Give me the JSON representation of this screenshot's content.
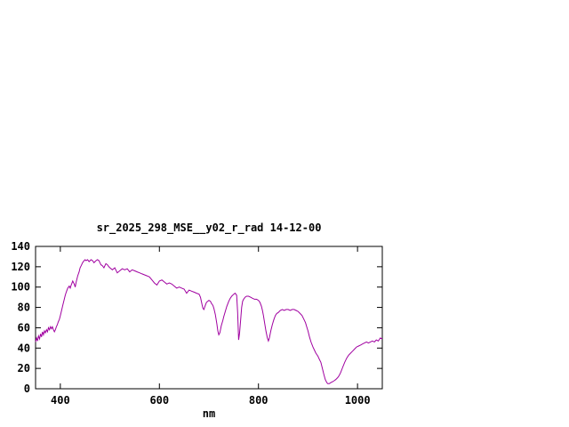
{
  "chart_data": {
    "type": "line",
    "title": "sr_2025_298_MSE__y02_r_rad 14-12-00",
    "xlabel": "nm",
    "ylabel": "",
    "xlim": [
      350,
      1050
    ],
    "ylim": [
      0,
      140
    ],
    "xticks": [
      400,
      600,
      800,
      1000
    ],
    "yticks": [
      0,
      20,
      40,
      60,
      80,
      100,
      120,
      140
    ],
    "grid": false,
    "legend": "none",
    "axis_color": "#000000",
    "background": "#ffffff",
    "series": [
      {
        "color": "#a000a0",
        "points": [
          [
            350,
            46
          ],
          [
            352,
            50
          ],
          [
            354,
            47
          ],
          [
            356,
            52
          ],
          [
            358,
            49
          ],
          [
            360,
            54
          ],
          [
            362,
            51
          ],
          [
            364,
            56
          ],
          [
            366,
            53
          ],
          [
            368,
            57
          ],
          [
            370,
            55
          ],
          [
            372,
            58
          ],
          [
            374,
            56
          ],
          [
            376,
            60
          ],
          [
            378,
            58
          ],
          [
            380,
            61
          ],
          [
            382,
            59
          ],
          [
            384,
            61
          ],
          [
            386,
            58
          ],
          [
            388,
            56
          ],
          [
            390,
            58
          ],
          [
            392,
            61
          ],
          [
            394,
            63
          ],
          [
            396,
            66
          ],
          [
            398,
            68
          ],
          [
            400,
            72
          ],
          [
            402,
            76
          ],
          [
            405,
            82
          ],
          [
            408,
            88
          ],
          [
            410,
            92
          ],
          [
            412,
            95
          ],
          [
            415,
            99
          ],
          [
            418,
            101
          ],
          [
            420,
            99
          ],
          [
            422,
            102
          ],
          [
            425,
            106
          ],
          [
            428,
            103
          ],
          [
            430,
            100
          ],
          [
            432,
            105
          ],
          [
            435,
            111
          ],
          [
            438,
            115
          ],
          [
            440,
            119
          ],
          [
            442,
            121
          ],
          [
            445,
            124
          ],
          [
            448,
            126
          ],
          [
            450,
            127
          ],
          [
            452,
            126
          ],
          [
            455,
            127
          ],
          [
            458,
            125
          ],
          [
            460,
            126
          ],
          [
            462,
            127
          ],
          [
            465,
            126
          ],
          [
            468,
            124
          ],
          [
            470,
            125
          ],
          [
            472,
            126
          ],
          [
            475,
            127
          ],
          [
            478,
            126
          ],
          [
            480,
            124
          ],
          [
            482,
            122
          ],
          [
            485,
            121
          ],
          [
            488,
            119
          ],
          [
            490,
            121
          ],
          [
            492,
            123
          ],
          [
            495,
            122
          ],
          [
            498,
            120
          ],
          [
            500,
            119
          ],
          [
            505,
            117
          ],
          [
            510,
            119
          ],
          [
            515,
            114
          ],
          [
            520,
            116
          ],
          [
            525,
            118
          ],
          [
            530,
            117
          ],
          [
            535,
            118
          ],
          [
            540,
            115
          ],
          [
            545,
            117
          ],
          [
            550,
            116
          ],
          [
            555,
            115
          ],
          [
            560,
            114
          ],
          [
            565,
            113
          ],
          [
            570,
            112
          ],
          [
            575,
            111
          ],
          [
            580,
            110
          ],
          [
            585,
            107
          ],
          [
            590,
            104
          ],
          [
            595,
            102
          ],
          [
            600,
            106
          ],
          [
            605,
            107
          ],
          [
            610,
            105
          ],
          [
            615,
            103
          ],
          [
            620,
            104
          ],
          [
            625,
            103
          ],
          [
            630,
            101
          ],
          [
            635,
            99
          ],
          [
            640,
            100
          ],
          [
            645,
            99
          ],
          [
            650,
            98
          ],
          [
            655,
            94
          ],
          [
            660,
            97
          ],
          [
            665,
            96
          ],
          [
            670,
            95
          ],
          [
            675,
            94
          ],
          [
            680,
            93
          ],
          [
            683,
            90
          ],
          [
            686,
            83
          ],
          [
            688,
            79
          ],
          [
            690,
            78
          ],
          [
            692,
            81
          ],
          [
            695,
            85
          ],
          [
            700,
            87
          ],
          [
            703,
            86
          ],
          [
            705,
            84
          ],
          [
            708,
            82
          ],
          [
            710,
            79
          ],
          [
            713,
            73
          ],
          [
            716,
            64
          ],
          [
            718,
            57
          ],
          [
            720,
            53
          ],
          [
            722,
            55
          ],
          [
            725,
            62
          ],
          [
            728,
            67
          ],
          [
            730,
            71
          ],
          [
            733,
            76
          ],
          [
            736,
            81
          ],
          [
            740,
            86
          ],
          [
            743,
            89
          ],
          [
            746,
            91
          ],
          [
            750,
            93
          ],
          [
            753,
            94
          ],
          [
            756,
            92
          ],
          [
            758,
            75
          ],
          [
            760,
            48
          ],
          [
            762,
            55
          ],
          [
            764,
            68
          ],
          [
            766,
            80
          ],
          [
            768,
            86
          ],
          [
            770,
            88
          ],
          [
            773,
            90
          ],
          [
            776,
            91
          ],
          [
            780,
            91
          ],
          [
            784,
            90
          ],
          [
            788,
            89
          ],
          [
            792,
            88
          ],
          [
            796,
            88
          ],
          [
            800,
            87
          ],
          [
            803,
            85
          ],
          [
            806,
            81
          ],
          [
            808,
            77
          ],
          [
            810,
            72
          ],
          [
            812,
            66
          ],
          [
            815,
            57
          ],
          [
            818,
            50
          ],
          [
            820,
            47
          ],
          [
            822,
            50
          ],
          [
            825,
            57
          ],
          [
            828,
            63
          ],
          [
            831,
            68
          ],
          [
            834,
            72
          ],
          [
            837,
            74
          ],
          [
            840,
            75
          ],
          [
            844,
            77
          ],
          [
            848,
            78
          ],
          [
            852,
            77
          ],
          [
            856,
            78
          ],
          [
            860,
            78
          ],
          [
            864,
            77
          ],
          [
            868,
            78
          ],
          [
            872,
            78
          ],
          [
            876,
            77
          ],
          [
            880,
            76
          ],
          [
            884,
            74
          ],
          [
            888,
            72
          ],
          [
            892,
            68
          ],
          [
            895,
            65
          ],
          [
            898,
            60
          ],
          [
            900,
            57
          ],
          [
            903,
            51
          ],
          [
            906,
            46
          ],
          [
            910,
            41
          ],
          [
            913,
            38
          ],
          [
            916,
            35
          ],
          [
            920,
            32
          ],
          [
            923,
            29
          ],
          [
            926,
            26
          ],
          [
            929,
            20
          ],
          [
            932,
            14
          ],
          [
            935,
            9
          ],
          [
            938,
            6
          ],
          [
            940,
            5
          ],
          [
            943,
            5
          ],
          [
            946,
            6
          ],
          [
            950,
            7
          ],
          [
            953,
            8
          ],
          [
            956,
            9
          ],
          [
            960,
            11
          ],
          [
            963,
            13
          ],
          [
            966,
            16
          ],
          [
            970,
            21
          ],
          [
            974,
            26
          ],
          [
            978,
            30
          ],
          [
            982,
            33
          ],
          [
            986,
            35
          ],
          [
            990,
            37
          ],
          [
            994,
            39
          ],
          [
            998,
            41
          ],
          [
            1002,
            42
          ],
          [
            1006,
            43
          ],
          [
            1010,
            44
          ],
          [
            1014,
            45
          ],
          [
            1018,
            46
          ],
          [
            1022,
            45
          ],
          [
            1026,
            46
          ],
          [
            1030,
            47
          ],
          [
            1034,
            46
          ],
          [
            1038,
            48
          ],
          [
            1042,
            47
          ],
          [
            1046,
            50
          ],
          [
            1050,
            49
          ]
        ]
      }
    ]
  }
}
